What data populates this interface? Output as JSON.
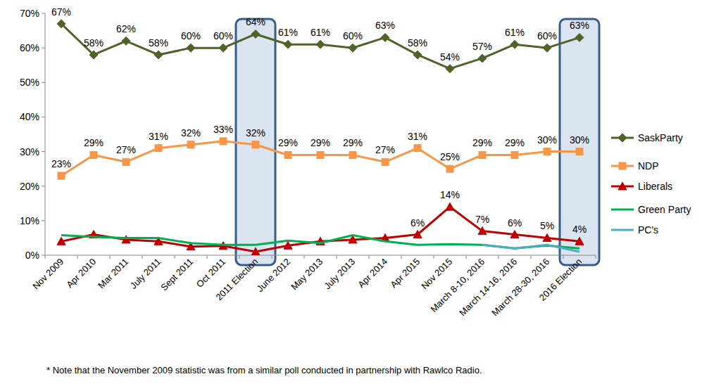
{
  "chart_data": {
    "type": "line",
    "categories": [
      "Nov 2009",
      "Apr 2010",
      "Mar 2011",
      "July 2011",
      "Sept 2011",
      "Oct 2011",
      "2011 Election",
      "June 2012",
      "May 2013",
      "July 2013",
      "Apr 2014",
      "Apr 2015",
      "Nov 2015",
      "March 8-10, 2016",
      "March 14-16, 2016",
      "March 28-30, 2016",
      "2016 Election"
    ],
    "series": [
      {
        "name": "SaskParty",
        "color": "#4f6228",
        "marker": "diamond",
        "values": [
          67,
          58,
          62,
          58,
          60,
          60,
          64,
          61,
          61,
          60,
          63,
          58,
          54,
          57,
          61,
          60,
          63
        ],
        "value_labels": [
          "67%",
          "58%",
          "62%",
          "58%",
          "60%",
          "60%",
          "64%",
          "61%",
          "61%",
          "60%",
          "63%",
          "58%",
          "54%",
          "57%",
          "61%",
          "60%",
          "63%"
        ]
      },
      {
        "name": "NDP",
        "color": "#f79646",
        "marker": "square",
        "values": [
          23,
          29,
          27,
          31,
          32,
          33,
          32,
          29,
          29,
          29,
          27,
          31,
          25,
          29,
          29,
          30,
          30
        ],
        "value_labels": [
          "23%",
          "29%",
          "27%",
          "31%",
          "32%",
          "33%",
          "32%",
          "29%",
          "29%",
          "29%",
          "27%",
          "31%",
          "25%",
          "29%",
          "29%",
          "30%",
          "30%"
        ]
      },
      {
        "name": "Liberals",
        "color": "#c00000",
        "marker": "triangle",
        "values": [
          4,
          6,
          4.5,
          4,
          2.5,
          2.7,
          1,
          2.8,
          4,
          4.5,
          5,
          6,
          14,
          7,
          6,
          5,
          4
        ],
        "value_labels": [
          null,
          null,
          null,
          null,
          null,
          null,
          null,
          null,
          null,
          null,
          null,
          "6%",
          "14%",
          "7%",
          "6%",
          "5%",
          "4%"
        ]
      },
      {
        "name": "Green Party",
        "color": "#00b050",
        "marker": "none",
        "values": [
          5.8,
          5.3,
          5,
          5,
          3.5,
          3,
          3,
          4.2,
          3.5,
          5.8,
          4,
          3,
          3.2,
          3,
          2,
          2.8,
          2
        ]
      },
      {
        "name": "PC's",
        "color": "#4bacc6",
        "marker": "none",
        "values": [
          null,
          null,
          null,
          null,
          null,
          null,
          null,
          null,
          null,
          null,
          null,
          null,
          null,
          3,
          2,
          3,
          1
        ]
      }
    ],
    "ylim": [
      0,
      70
    ],
    "yticks": [
      {
        "value": 0,
        "label": "0%"
      },
      {
        "value": 10,
        "label": "10%"
      },
      {
        "value": 20,
        "label": "20%"
      },
      {
        "value": 30,
        "label": "30%"
      },
      {
        "value": 40,
        "label": "40%"
      },
      {
        "value": 50,
        "label": "50%"
      },
      {
        "value": 60,
        "label": "60%"
      },
      {
        "value": 70,
        "label": "70%"
      }
    ],
    "grid": false,
    "legend": "right",
    "data_labels": true,
    "annotations": [
      "* Note that the November 2009 statistic was from a similar poll conducted in partnership with Rawlco Radio."
    ]
  }
}
